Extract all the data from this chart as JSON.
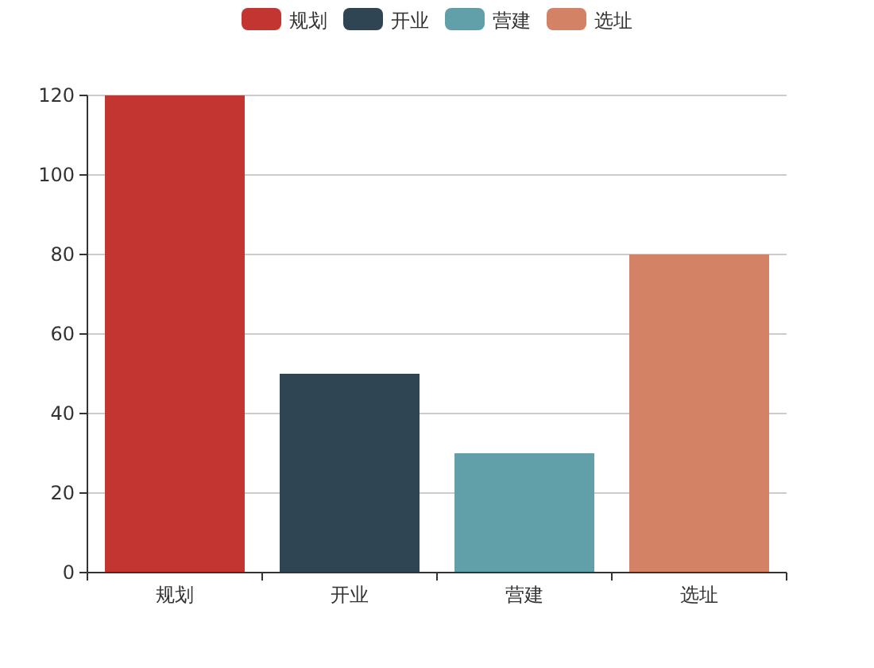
{
  "chart_data": {
    "type": "bar",
    "categories": [
      "规划",
      "开业",
      "营建",
      "选址"
    ],
    "stacked": true,
    "series": [
      {
        "name": "规划",
        "color": "#c23531",
        "values": [
          120,
          null,
          null,
          null
        ]
      },
      {
        "name": "开业",
        "color": "#2f4554",
        "values": [
          null,
          50,
          null,
          null
        ]
      },
      {
        "name": "营建",
        "color": "#61a0a8",
        "values": [
          null,
          null,
          30,
          null
        ]
      },
      {
        "name": "选址",
        "color": "#d48265",
        "values": [
          null,
          null,
          null,
          80
        ]
      }
    ],
    "ylim": [
      0,
      120
    ],
    "yticks": [
      0,
      20,
      40,
      60,
      80,
      100,
      120
    ],
    "grid": "y",
    "legend": "top"
  }
}
